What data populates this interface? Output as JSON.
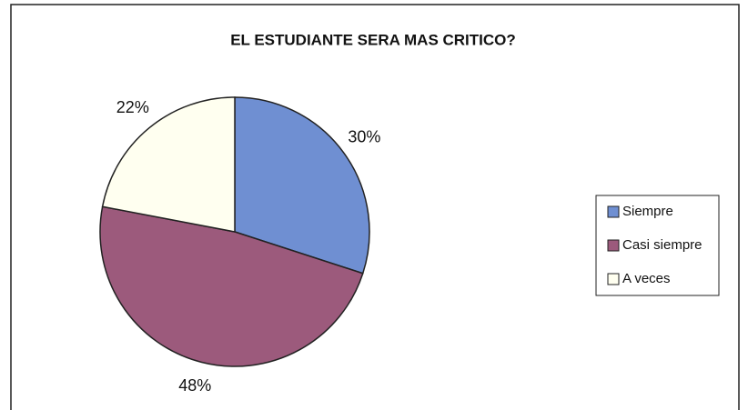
{
  "chart_data": {
    "type": "pie",
    "title": "EL ESTUDIANTE SERA MAS CRITICO?",
    "categories": [
      "Siempre",
      "Casi siempre",
      "A veces"
    ],
    "values": [
      30,
      48,
      22
    ],
    "value_labels": [
      "30%",
      "48%",
      "22%"
    ],
    "colors": [
      "#6f8fd2",
      "#9c5a7c",
      "#fffff0"
    ],
    "legend": "right"
  }
}
